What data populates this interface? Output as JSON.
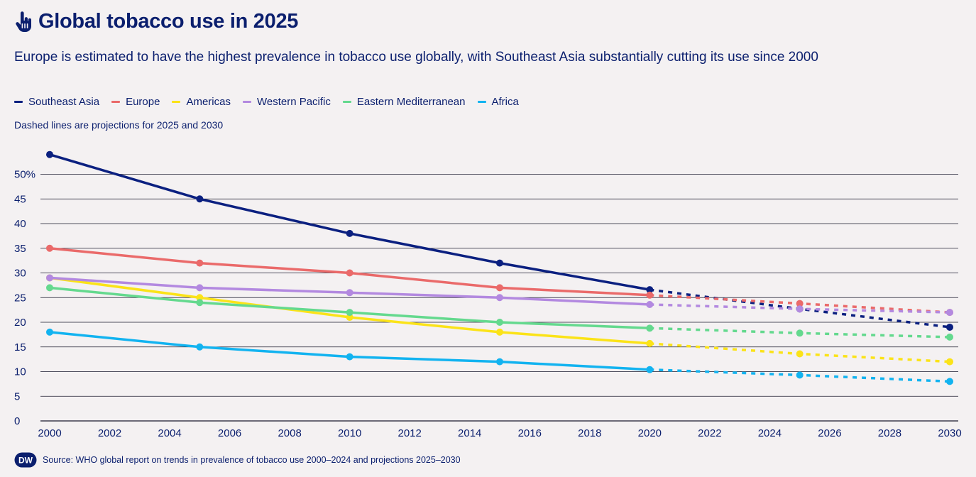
{
  "header": {
    "title": "Global tobacco use in 2025",
    "icon": "hand-pointer-icon",
    "subtitle": "Europe is estimated to have the highest prevalence in tobacco use globally, with Southeast Asia substantially cutting its use since 2000"
  },
  "note": "Dashed lines are projections for 2025 and 2030",
  "footer": {
    "logo": "DW",
    "source": "Source: WHO global report on trends in prevalence of tobacco use 2000–2024 and projections 2025–2030"
  },
  "chart_data": {
    "type": "line",
    "title": "Global tobacco use in 2025",
    "xlabel": "",
    "ylabel": "",
    "xlim": [
      2000,
      2030
    ],
    "ylim": [
      0,
      50
    ],
    "x_ticks": [
      "2000",
      "2002",
      "2004",
      "2006",
      "2008",
      "2010",
      "2012",
      "2014",
      "2016",
      "2018",
      "2020",
      "2022",
      "2024",
      "2026",
      "2028",
      "2030"
    ],
    "y_ticks": [
      "0",
      "5",
      "10",
      "15",
      "20",
      "25",
      "30",
      "35",
      "40",
      "45",
      "50%"
    ],
    "grid": "horizontal",
    "legend_position": "top-left",
    "projection_start": 2020,
    "series": [
      {
        "name": "Southeast Asia",
        "color": "#0b2080",
        "x": [
          2000,
          2005,
          2010,
          2015,
          2020,
          2025,
          2030
        ],
        "values": [
          54,
          45,
          38,
          32,
          26.6,
          22.7,
          19
        ]
      },
      {
        "name": "Europe",
        "color": "#ea6a6a",
        "x": [
          2000,
          2005,
          2010,
          2015,
          2020,
          2025,
          2030
        ],
        "values": [
          35,
          32,
          30,
          27,
          25.5,
          23.8,
          22
        ]
      },
      {
        "name": "Americas",
        "color": "#fbe318",
        "x": [
          2000,
          2005,
          2010,
          2015,
          2020,
          2025,
          2030
        ],
        "values": [
          29,
          25,
          21,
          18,
          15.7,
          13.6,
          12
        ]
      },
      {
        "name": "Western Pacific",
        "color": "#b389e0",
        "x": [
          2000,
          2005,
          2010,
          2015,
          2020,
          2025,
          2030
        ],
        "values": [
          29,
          27,
          26,
          25,
          23.6,
          22.7,
          22
        ]
      },
      {
        "name": "Eastern Mediterranean",
        "color": "#64d98e",
        "x": [
          2000,
          2005,
          2010,
          2015,
          2020,
          2025,
          2030
        ],
        "values": [
          27,
          24,
          22,
          20,
          18.8,
          17.8,
          17
        ]
      },
      {
        "name": "Africa",
        "color": "#12b3f0",
        "x": [
          2000,
          2005,
          2010,
          2015,
          2020,
          2025,
          2030
        ],
        "values": [
          18,
          15,
          13,
          12,
          10.4,
          9.3,
          8
        ]
      }
    ]
  }
}
